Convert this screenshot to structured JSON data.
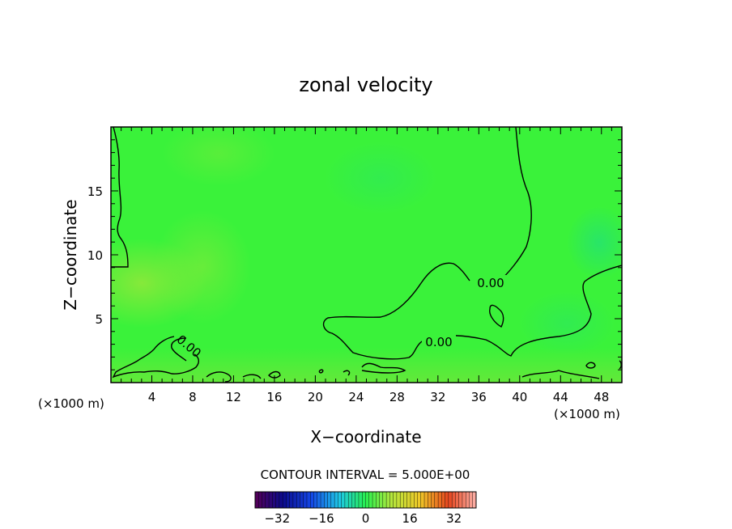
{
  "chart_data": {
    "type": "heatmap",
    "title": "zonal velocity",
    "xlabel": "X−coordinate",
    "ylabel": "Z−coordinate",
    "x_unit_left": "(×1000 m)",
    "x_unit_right": "(×1000 m)",
    "xlim": [
      0,
      50
    ],
    "ylim": [
      0,
      20
    ],
    "x_ticks": [
      4,
      8,
      12,
      16,
      20,
      24,
      28,
      32,
      36,
      40,
      44,
      48
    ],
    "y_ticks": [
      5,
      10,
      15
    ],
    "contour_interval_label": "CONTOUR INTERVAL = 5.000E+00",
    "contour_labels": [
      "0.00",
      "0.00",
      "0.00"
    ],
    "colorbar": {
      "min": -40,
      "max": 40,
      "ticks": [
        -32,
        -16,
        0,
        16,
        32
      ],
      "tick_labels": [
        "−32",
        "−16",
        "0",
        "16",
        "32"
      ]
    },
    "colors": {
      "field_base": "#3af23a",
      "contour": "#000000"
    }
  }
}
